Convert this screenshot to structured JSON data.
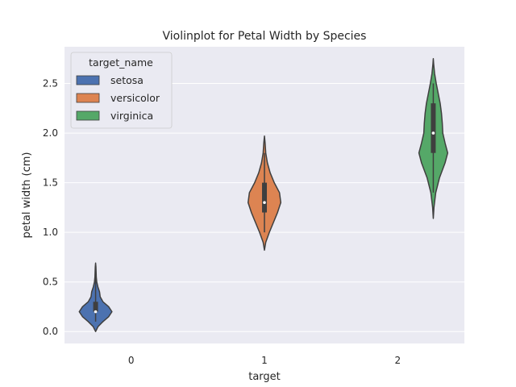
{
  "chart_data": {
    "type": "violin",
    "title": "Violinplot for Petal Width by Species",
    "xlabel": "target",
    "ylabel": "petal width (cm)",
    "categories": [
      "0",
      "1",
      "2"
    ],
    "ylim": [
      -0.12,
      2.87
    ],
    "yticks": [
      0.0,
      0.5,
      1.0,
      1.5,
      2.0,
      2.5
    ],
    "ytick_labels": [
      "0.0",
      "0.5",
      "1.0",
      "1.5",
      "2.0",
      "2.5"
    ],
    "grid": true,
    "legend": {
      "title": "target_name",
      "position": "top-left"
    },
    "series": [
      {
        "name": "setosa",
        "category": "0",
        "color": "#4c72b0",
        "min": 0.1,
        "q1": 0.2,
        "median": 0.2,
        "q3": 0.3,
        "max": 0.6,
        "density": [
          [
            0.0,
            0.0
          ],
          [
            0.05,
            0.15
          ],
          [
            0.1,
            0.45
          ],
          [
            0.15,
            0.8
          ],
          [
            0.2,
            1.0
          ],
          [
            0.25,
            0.8
          ],
          [
            0.3,
            0.45
          ],
          [
            0.35,
            0.28
          ],
          [
            0.4,
            0.24
          ],
          [
            0.45,
            0.14
          ],
          [
            0.5,
            0.07
          ],
          [
            0.55,
            0.04
          ],
          [
            0.6,
            0.03
          ],
          [
            0.65,
            0.02
          ],
          [
            0.69,
            0.0
          ]
        ]
      },
      {
        "name": "versicolor",
        "category": "1",
        "color": "#dd8452",
        "min": 1.0,
        "q1": 1.2,
        "median": 1.3,
        "q3": 1.5,
        "max": 1.8,
        "density": [
          [
            0.82,
            0.0
          ],
          [
            0.9,
            0.08
          ],
          [
            1.0,
            0.3
          ],
          [
            1.1,
            0.55
          ],
          [
            1.2,
            0.8
          ],
          [
            1.3,
            1.0
          ],
          [
            1.4,
            0.92
          ],
          [
            1.5,
            0.6
          ],
          [
            1.6,
            0.35
          ],
          [
            1.7,
            0.18
          ],
          [
            1.8,
            0.08
          ],
          [
            1.9,
            0.04
          ],
          [
            1.97,
            0.0
          ]
        ]
      },
      {
        "name": "virginica",
        "category": "2",
        "color": "#55a868",
        "min": 1.4,
        "q1": 1.8,
        "median": 2.0,
        "q3": 2.3,
        "max": 2.5,
        "density": [
          [
            1.14,
            0.0
          ],
          [
            1.25,
            0.04
          ],
          [
            1.4,
            0.15
          ],
          [
            1.55,
            0.38
          ],
          [
            1.7,
            0.72
          ],
          [
            1.8,
            0.88
          ],
          [
            1.9,
            0.72
          ],
          [
            2.0,
            0.58
          ],
          [
            2.1,
            0.55
          ],
          [
            2.2,
            0.5
          ],
          [
            2.3,
            0.42
          ],
          [
            2.4,
            0.3
          ],
          [
            2.5,
            0.18
          ],
          [
            2.6,
            0.08
          ],
          [
            2.7,
            0.02
          ],
          [
            2.75,
            0.0
          ]
        ]
      }
    ]
  }
}
